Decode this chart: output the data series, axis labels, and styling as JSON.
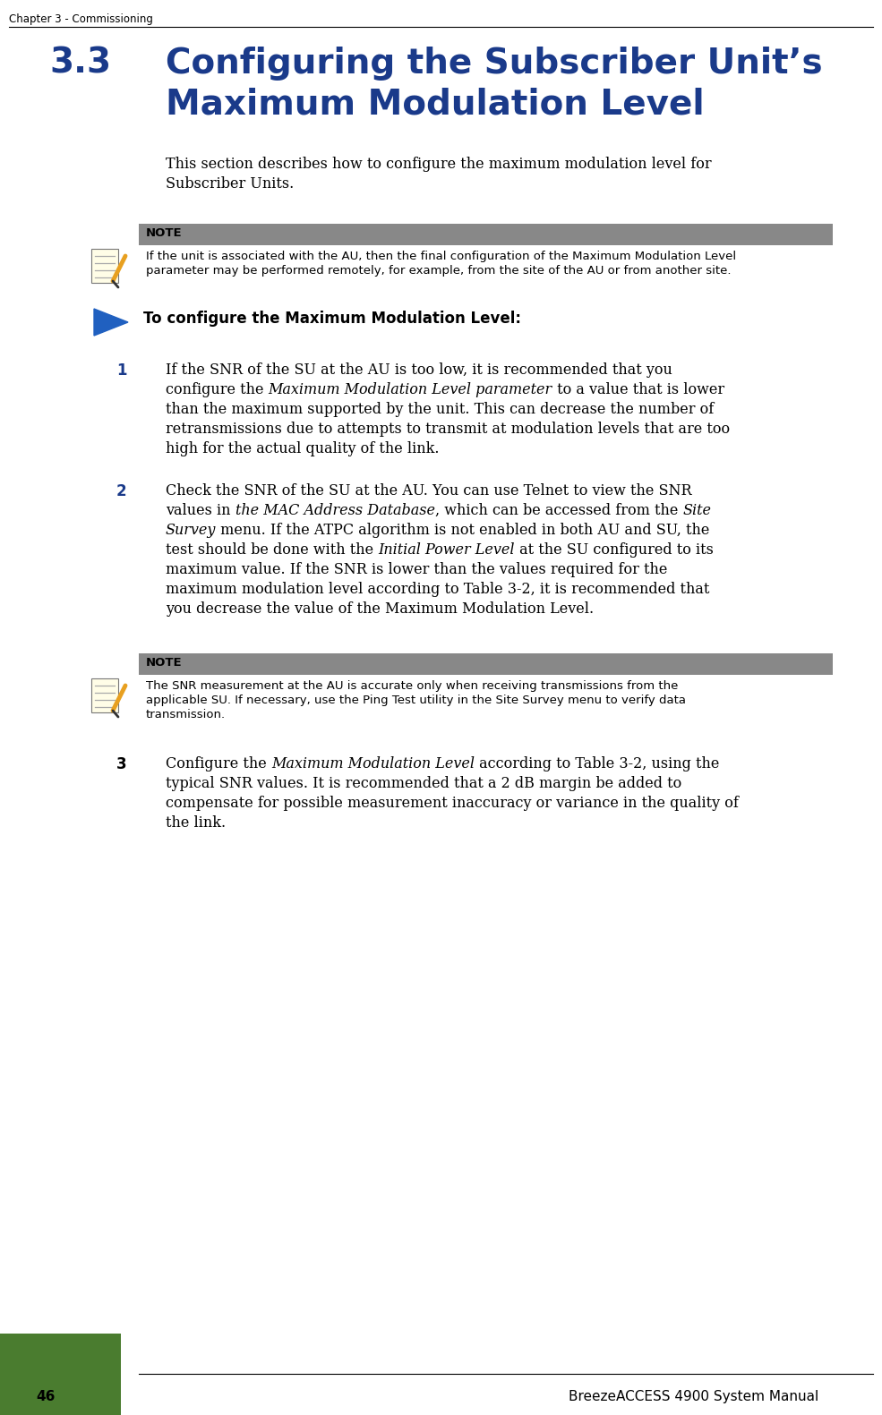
{
  "page_header": "Chapter 3 - Commissioning",
  "section_num": "3.3",
  "section_title_line1": "Configuring the Subscriber Unit’s",
  "section_title_line2": "Maximum Modulation Level",
  "section_title_color": "#1a3a8a",
  "bg_color": "#ffffff",
  "note_bg": "#8a8a8a",
  "footer_green_color": "#4a7c2f",
  "footer_page_num": "46",
  "footer_right": "BreezeACCESS 4900 System Manual"
}
